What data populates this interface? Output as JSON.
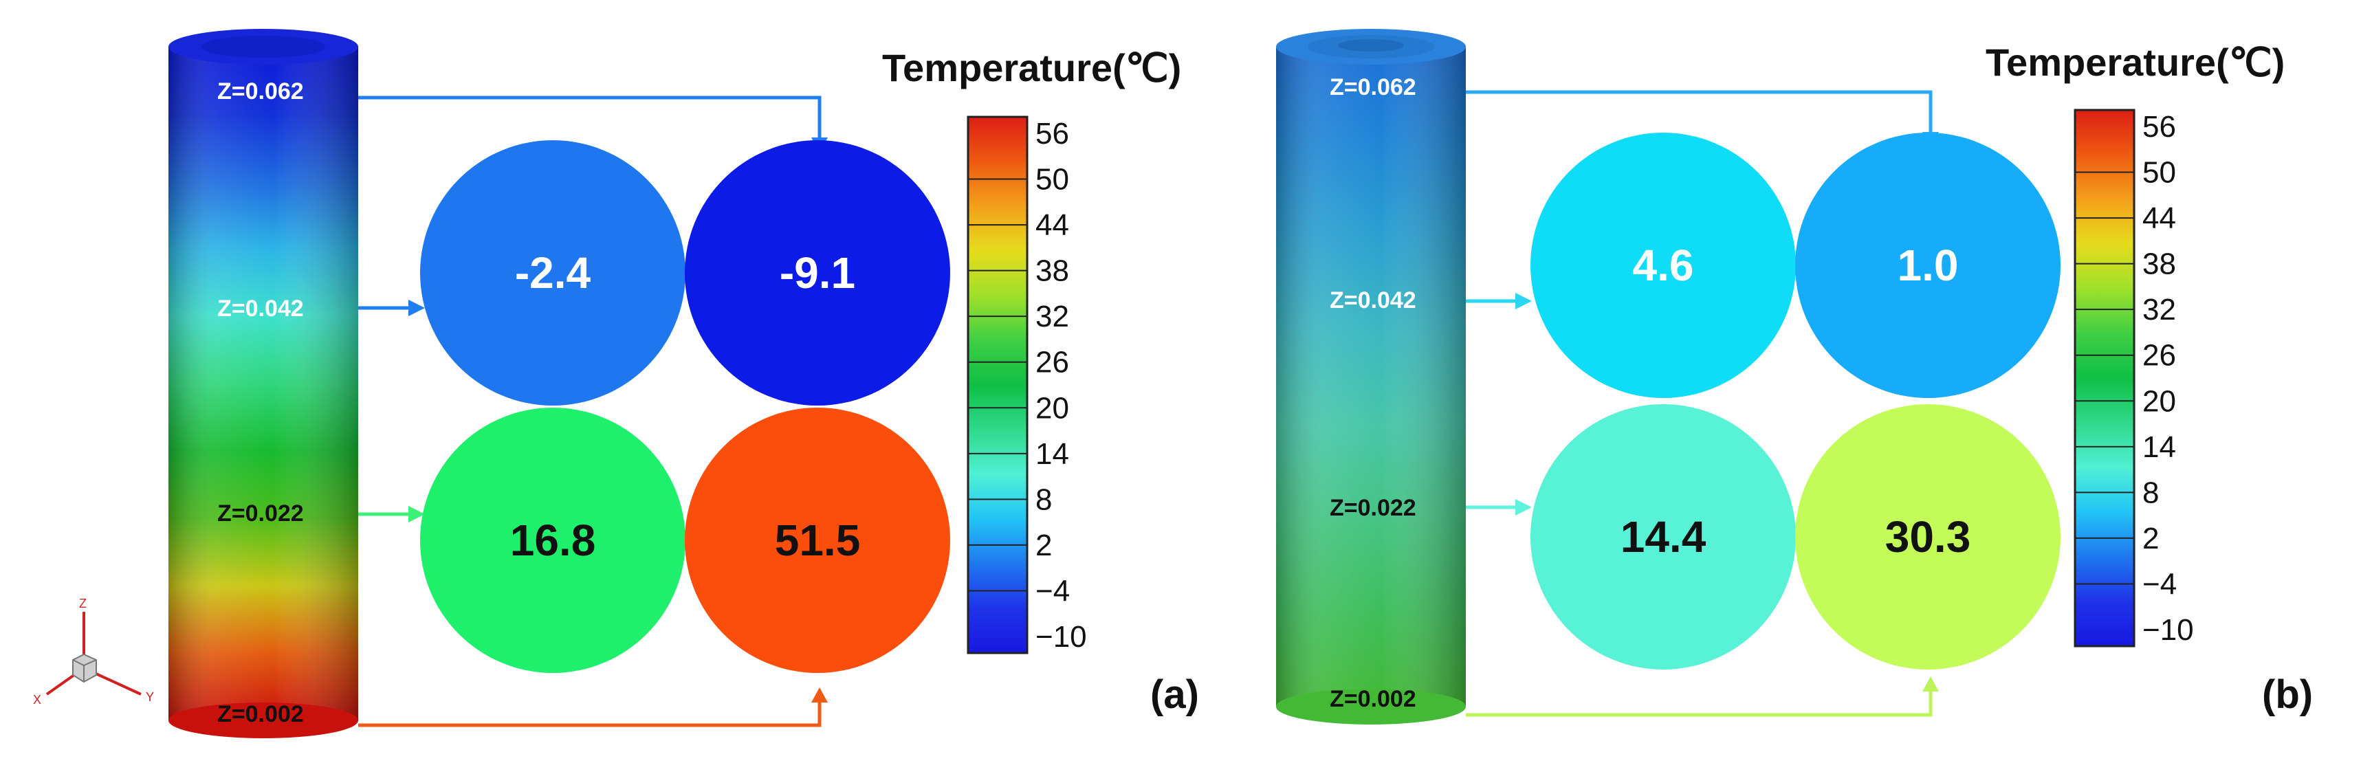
{
  "colorbar": {
    "title": "Temperature(℃)",
    "ticks": [
      "56",
      "50",
      "44",
      "38",
      "32",
      "26",
      "20",
      "14",
      "8",
      "2",
      "−4",
      "−10"
    ],
    "stops": [
      "#dc1f14",
      "#ee5a11",
      "#f3a01a",
      "#e5dc1c",
      "#a0e02a",
      "#3fcf44",
      "#0fbf45",
      "#2fd98a",
      "#4ff0d4",
      "#22c4f6",
      "#1f78ef",
      "#1f33e8",
      "#1818e0"
    ]
  },
  "panels": [
    {
      "id": "a",
      "label": "(a)",
      "z_labels": [
        "Z=0.062",
        "Z=0.042",
        "Z=0.022",
        "Z=0.002"
      ],
      "cylinder_stops": [
        "#0d1ad8",
        "#1230d8",
        "#1e6ce0",
        "#2bb4e6",
        "#3de1cc",
        "#2fd67a",
        "#17bb30",
        "#4dbb1a",
        "#c9c614",
        "#e35c0f",
        "#c8110c"
      ],
      "circles": [
        {
          "value": "-2.4",
          "fill": "#1f77f0",
          "text": "#ffffff"
        },
        {
          "value": "-9.1",
          "fill": "#0d1be6",
          "text": "#ffffff"
        },
        {
          "value": "16.8",
          "fill": "#1ff06b",
          "text": "#111111"
        },
        {
          "value": "51.5",
          "fill": "#fb4e0c",
          "text": "#111111"
        }
      ],
      "arrow_colors": {
        "top": "#1f7ef0",
        "mid_upper": "#1f7ef0",
        "mid_lower": "#3df07a",
        "bottom": "#f05a14"
      }
    },
    {
      "id": "b",
      "label": "(b)",
      "z_labels": [
        "Z=0.062",
        "Z=0.042",
        "Z=0.022",
        "Z=0.002"
      ],
      "cylinder_stops": [
        "#1d6fd8",
        "#1f86d6",
        "#2aa0d0",
        "#3bb8c2",
        "#47c6a8",
        "#45c484",
        "#3fbe5c",
        "#43b935"
      ],
      "circles": [
        {
          "value": "4.6",
          "fill": "#0fdcf7",
          "text": "#ffffff"
        },
        {
          "value": "1.0",
          "fill": "#16acfa",
          "text": "#ffffff"
        },
        {
          "value": "14.4",
          "fill": "#58f3d6",
          "text": "#111111"
        },
        {
          "value": "30.3",
          "fill": "#c3fb58",
          "text": "#111111"
        }
      ],
      "arrow_colors": {
        "top": "#2aa8f2",
        "mid_upper": "#2ad6f0",
        "mid_lower": "#5ff2dc",
        "bottom": "#bdf45c"
      }
    }
  ],
  "triad": {
    "z": "Z",
    "x": "X",
    "y": "Y"
  }
}
